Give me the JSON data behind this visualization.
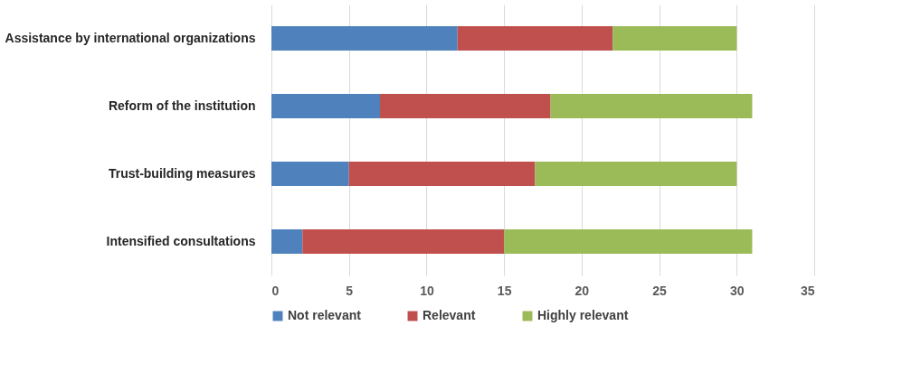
{
  "chart_data": {
    "type": "bar",
    "orientation": "horizontal",
    "stacked": true,
    "categories": [
      "Assistance by international organizations",
      "Reform of the institution",
      "Trust-building measures",
      "Intensified consultations"
    ],
    "series": [
      {
        "name": "Not relevant",
        "color": "#4f81bd",
        "values": [
          12,
          7,
          5,
          2
        ]
      },
      {
        "name": "Relevant",
        "color": "#c0504d",
        "values": [
          10,
          11,
          12,
          13
        ]
      },
      {
        "name": "Highly relevant",
        "color": "#9bbb59",
        "values": [
          8,
          13,
          13,
          16
        ]
      }
    ],
    "xlim": [
      0,
      35
    ],
    "xticks": [
      0,
      5,
      10,
      15,
      20,
      25,
      30,
      35
    ],
    "grid": "x",
    "legend": "bottom"
  }
}
